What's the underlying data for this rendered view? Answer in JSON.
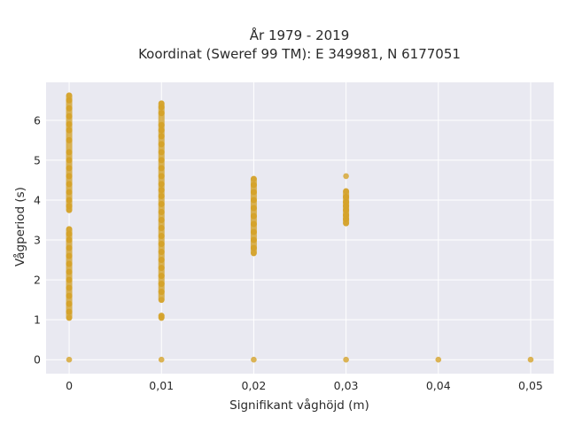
{
  "chart_data": {
    "type": "scatter",
    "title": "År 1979 - 2019",
    "subtitle": "Koordinat (Sweref 99 TM): E 349981, N 6177051",
    "xlabel": "Signifikant våghöjd (m)",
    "ylabel": "Vågperiod (s)",
    "xlim": [
      -0.0025,
      0.0525
    ],
    "ylim": [
      -0.35,
      6.95
    ],
    "x_ticks": [
      {
        "value": 0,
        "label": "0"
      },
      {
        "value": 0.01,
        "label": "0,01"
      },
      {
        "value": 0.02,
        "label": "0,02"
      },
      {
        "value": 0.03,
        "label": "0,03"
      },
      {
        "value": 0.04,
        "label": "0,04"
      },
      {
        "value": 0.05,
        "label": "0,05"
      }
    ],
    "y_ticks": [
      {
        "value": 0,
        "label": "0"
      },
      {
        "value": 1,
        "label": "1"
      },
      {
        "value": 2,
        "label": "2"
      },
      {
        "value": 3,
        "label": "3"
      },
      {
        "value": 4,
        "label": "4"
      },
      {
        "value": 5,
        "label": "5"
      },
      {
        "value": 6,
        "label": "6"
      }
    ],
    "grid": true,
    "marker_color": "#d4a32a",
    "background_color": "#e9e9f1",
    "series": [
      {
        "color": "#d4a32a",
        "points": [
          {
            "x": 0,
            "y": 0
          },
          {
            "x": 0,
            "y": 1.05
          },
          {
            "x": 0,
            "y": 1.2
          },
          {
            "x": 0,
            "y": 1.4
          },
          {
            "x": 0,
            "y": 1.6
          },
          {
            "x": 0,
            "y": 1.8
          },
          {
            "x": 0,
            "y": 2.0
          },
          {
            "x": 0,
            "y": 2.2
          },
          {
            "x": 0,
            "y": 2.4
          },
          {
            "x": 0,
            "y": 2.6
          },
          {
            "x": 0,
            "y": 2.8
          },
          {
            "x": 0,
            "y": 3.0
          },
          {
            "x": 0,
            "y": 3.15
          },
          {
            "x": 0,
            "y": 3.27
          },
          {
            "x": 0,
            "y": 3.75
          },
          {
            "x": 0,
            "y": 3.85
          },
          {
            "x": 0,
            "y": 4.0
          },
          {
            "x": 0,
            "y": 4.2
          },
          {
            "x": 0,
            "y": 4.4
          },
          {
            "x": 0,
            "y": 4.6
          },
          {
            "x": 0,
            "y": 4.8
          },
          {
            "x": 0,
            "y": 5.0
          },
          {
            "x": 0,
            "y": 5.2
          },
          {
            "x": 0,
            "y": 5.5
          },
          {
            "x": 0,
            "y": 5.75
          },
          {
            "x": 0,
            "y": 5.9
          },
          {
            "x": 0,
            "y": 6.1
          },
          {
            "x": 0,
            "y": 6.3
          },
          {
            "x": 0,
            "y": 6.5
          },
          {
            "x": 0,
            "y": 6.62
          },
          {
            "x": 0.01,
            "y": 0
          },
          {
            "x": 0.01,
            "y": 1.05
          },
          {
            "x": 0.01,
            "y": 1.1
          },
          {
            "x": 0.01,
            "y": 1.5
          },
          {
            "x": 0.01,
            "y": 1.7
          },
          {
            "x": 0.01,
            "y": 1.9
          },
          {
            "x": 0.01,
            "y": 2.1
          },
          {
            "x": 0.01,
            "y": 2.3
          },
          {
            "x": 0.01,
            "y": 2.5
          },
          {
            "x": 0.01,
            "y": 2.7
          },
          {
            "x": 0.01,
            "y": 2.9
          },
          {
            "x": 0.01,
            "y": 3.1
          },
          {
            "x": 0.01,
            "y": 3.3
          },
          {
            "x": 0.01,
            "y": 3.5
          },
          {
            "x": 0.01,
            "y": 3.7
          },
          {
            "x": 0.01,
            "y": 3.9
          },
          {
            "x": 0.01,
            "y": 4.1
          },
          {
            "x": 0.01,
            "y": 4.25
          },
          {
            "x": 0.01,
            "y": 4.4
          },
          {
            "x": 0.01,
            "y": 4.6
          },
          {
            "x": 0.01,
            "y": 4.8
          },
          {
            "x": 0.01,
            "y": 5.0
          },
          {
            "x": 0.01,
            "y": 5.2
          },
          {
            "x": 0.01,
            "y": 5.4
          },
          {
            "x": 0.01,
            "y": 5.6
          },
          {
            "x": 0.01,
            "y": 5.75
          },
          {
            "x": 0.01,
            "y": 5.88
          },
          {
            "x": 0.01,
            "y": 6.18
          },
          {
            "x": 0.01,
            "y": 6.33
          },
          {
            "x": 0.01,
            "y": 6.42
          },
          {
            "x": 0.02,
            "y": 0
          },
          {
            "x": 0.02,
            "y": 2.67
          },
          {
            "x": 0.02,
            "y": 2.8
          },
          {
            "x": 0.02,
            "y": 3.0
          },
          {
            "x": 0.02,
            "y": 3.2
          },
          {
            "x": 0.02,
            "y": 3.4
          },
          {
            "x": 0.02,
            "y": 3.6
          },
          {
            "x": 0.02,
            "y": 3.8
          },
          {
            "x": 0.02,
            "y": 4.0
          },
          {
            "x": 0.02,
            "y": 4.2
          },
          {
            "x": 0.02,
            "y": 4.38
          },
          {
            "x": 0.02,
            "y": 4.53
          },
          {
            "x": 0.03,
            "y": 0
          },
          {
            "x": 0.03,
            "y": 3.42
          },
          {
            "x": 0.03,
            "y": 3.52
          },
          {
            "x": 0.03,
            "y": 3.62
          },
          {
            "x": 0.03,
            "y": 3.75
          },
          {
            "x": 0.03,
            "y": 3.85
          },
          {
            "x": 0.03,
            "y": 3.95
          },
          {
            "x": 0.03,
            "y": 4.08
          },
          {
            "x": 0.03,
            "y": 4.22
          },
          {
            "x": 0.03,
            "y": 4.6
          },
          {
            "x": 0.04,
            "y": 0
          },
          {
            "x": 0.05,
            "y": 0
          }
        ]
      }
    ]
  }
}
